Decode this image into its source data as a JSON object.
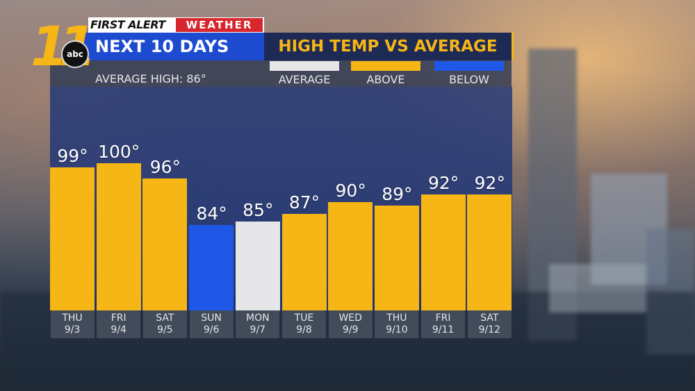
{
  "brand": {
    "first_alert": "FIRST ALERT",
    "weather": "WEATHER",
    "logo_number": "11",
    "network": "abc"
  },
  "header": {
    "title": "NEXT 10 DAYS",
    "subtitle": "HIGH TEMP VS AVERAGE",
    "average_high": "AVERAGE HIGH: 86°"
  },
  "legend": {
    "average": "AVERAGE",
    "above": "ABOVE",
    "below": "BELOW"
  },
  "colors": {
    "above": "#f6b616",
    "below": "#1f58e6",
    "average": "#e6e6e8",
    "brand_red": "#d7262e",
    "title_blue": "#1c4bd0"
  },
  "chart_data": {
    "type": "bar",
    "categories": [
      {
        "day": "THU",
        "date": "9/3"
      },
      {
        "day": "FRI",
        "date": "9/4"
      },
      {
        "day": "SAT",
        "date": "9/5"
      },
      {
        "day": "SUN",
        "date": "9/6"
      },
      {
        "day": "MON",
        "date": "9/7"
      },
      {
        "day": "TUE",
        "date": "9/8"
      },
      {
        "day": "WED",
        "date": "9/9"
      },
      {
        "day": "THU",
        "date": "9/10"
      },
      {
        "day": "FRI",
        "date": "9/11"
      },
      {
        "day": "SAT",
        "date": "9/12"
      }
    ],
    "values": [
      99,
      100,
      96,
      84,
      85,
      87,
      90,
      89,
      92,
      92
    ],
    "value_labels": [
      "99°",
      "100°",
      "96°",
      "84°",
      "85°",
      "87°",
      "90°",
      "89°",
      "92°",
      "92°"
    ],
    "categories_status": [
      "above",
      "above",
      "above",
      "below",
      "average",
      "above",
      "above",
      "above",
      "above",
      "above"
    ],
    "ylim": [
      62,
      100
    ],
    "grid": false,
    "legend_position": "top-right"
  }
}
